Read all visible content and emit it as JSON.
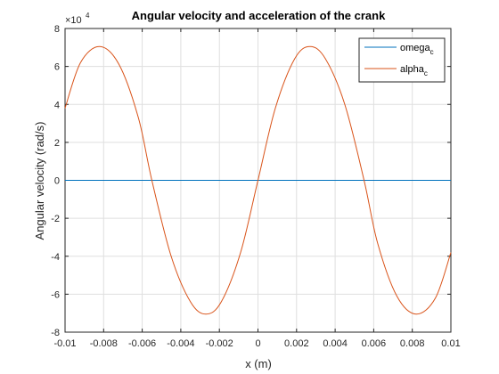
{
  "chart_data": {
    "type": "line",
    "title": "Angular velocity and acceleration of the crank",
    "xlabel": "x (m)",
    "ylabel": "Angular velocity (rad/s)",
    "exponent_label": {
      "base": "×10",
      "power": "4"
    },
    "xlim": [
      -0.01,
      0.01
    ],
    "ylim": [
      -80000,
      80000
    ],
    "x_ticks": [
      -0.01,
      -0.008,
      -0.006,
      -0.004,
      -0.002,
      0,
      0.002,
      0.004,
      0.006,
      0.008,
      0.01
    ],
    "x_tick_labels": [
      "-0.01",
      "-0.008",
      "-0.006",
      "-0.004",
      "-0.002",
      "0",
      "0.002",
      "0.004",
      "0.006",
      "0.008",
      "0.01"
    ],
    "y_ticks": [
      -80000,
      -60000,
      -40000,
      -20000,
      0,
      20000,
      40000,
      60000,
      80000
    ],
    "y_tick_labels": [
      "-8",
      "-6",
      "-4",
      "-2",
      "0",
      "2",
      "4",
      "6",
      "8"
    ],
    "grid": true,
    "legend_position": "top-right",
    "series": [
      {
        "name": "omega",
        "name_subscript": "c",
        "color": "#0072bd",
        "x": [
          -0.01,
          -0.008,
          -0.006,
          -0.004,
          -0.002,
          0,
          0.002,
          0.004,
          0.006,
          0.008,
          0.01
        ],
        "y": [
          0,
          0,
          0,
          0,
          0,
          0,
          0,
          0,
          0,
          0,
          0
        ]
      },
      {
        "name": "alpha",
        "name_subscript": "c",
        "color": "#d95319",
        "x": [
          -0.01,
          -0.0092,
          -0.0082,
          -0.0072,
          -0.0062,
          -0.0055,
          -0.0045,
          -0.0035,
          -0.0027,
          -0.0019,
          -0.0009,
          0,
          0.0009,
          0.0019,
          0.0027,
          0.0035,
          0.0045,
          0.0055,
          0.0062,
          0.0072,
          0.0082,
          0.0092,
          0.01
        ],
        "y": [
          38000,
          62000,
          70500,
          61000,
          33000,
          0,
          -40000,
          -64000,
          -70500,
          -64000,
          -38000,
          0,
          38000,
          64000,
          70500,
          64000,
          40000,
          0,
          -33000,
          -61000,
          -70500,
          -62000,
          -38000
        ]
      }
    ]
  }
}
